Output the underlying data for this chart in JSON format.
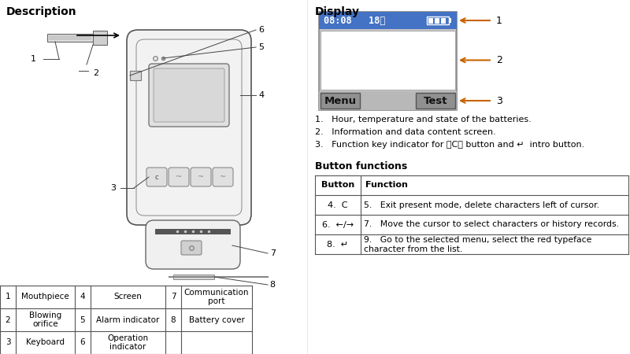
{
  "bg_color": "#ffffff",
  "left_title": "Description",
  "right_title": "Display",
  "display_header_color": "#4472c4",
  "display_header_text": "08:08   18℃",
  "display_menu_text": "Menu",
  "display_test_text": "Test",
  "display_arrow_color": "#c86400",
  "desc_list_labels": [
    [
      1,
      "Mouthpiece",
      4,
      "Screen",
      7,
      "Communication\nport"
    ],
    [
      2,
      "Blowing\norifice",
      5,
      "Alarm indicator",
      8,
      "Battery cover"
    ],
    [
      3,
      "Keyboard",
      6,
      "Operation\nindicator",
      "",
      ""
    ]
  ],
  "right_list": [
    "1.   Hour, temperature and state of the batteries.",
    "2.   Information and data content screen.",
    "3.   Function key indicator for 【C】 button and ↵  intro button."
  ],
  "button_title": "Button functions",
  "button_table_headers": [
    "Button",
    "Function"
  ],
  "button_table_rows": [
    [
      "4.  C",
      "5.   Exit present mode, delete characters left of cursor."
    ],
    [
      "6.  ←/→",
      "7.   Move the cursor to select characters or history records."
    ],
    [
      "8.  ↵",
      "9.   Go to the selected menu, select the red typeface\n      character from the list."
    ]
  ]
}
